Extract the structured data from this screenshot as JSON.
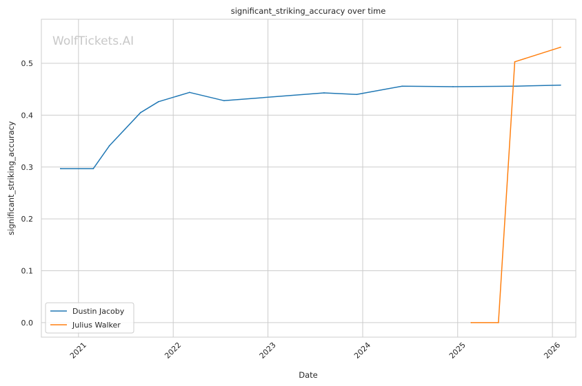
{
  "chart_data": {
    "type": "line",
    "title": "significant_striking_accuracy over time",
    "xlabel": "Date",
    "ylabel": "significant_striking_accuracy",
    "watermark": "WolfTickets.AI",
    "x_range": [
      "2020-08-11",
      "2026-04-01"
    ],
    "ylim": [
      -0.028,
      0.585
    ],
    "x_ticks": [
      "2021",
      "2022",
      "2023",
      "2024",
      "2025",
      "2026"
    ],
    "y_ticks": [
      "0.0",
      "0.1",
      "0.2",
      "0.3",
      "0.4",
      "0.5"
    ],
    "grid": true,
    "legend_position": "lower-left",
    "series": [
      {
        "name": "Dustin Jacoby",
        "color": "#1f77b4",
        "points": [
          [
            "2020-10-24",
            0.297
          ],
          [
            "2021-02-27",
            0.297
          ],
          [
            "2021-04-30",
            0.341
          ],
          [
            "2021-08-28",
            0.405
          ],
          [
            "2021-11-05",
            0.426
          ],
          [
            "2022-03-05",
            0.444
          ],
          [
            "2022-07-16",
            0.428
          ],
          [
            "2023-08-05",
            0.443
          ],
          [
            "2023-12-09",
            0.44
          ],
          [
            "2024-06-01",
            0.456
          ],
          [
            "2024-12-14",
            0.455
          ],
          [
            "2025-08-16",
            0.456
          ],
          [
            "2026-02-01",
            0.458
          ]
        ]
      },
      {
        "name": "Julius Walker",
        "color": "#ff7f0e",
        "points": [
          [
            "2025-02-22",
            0.0
          ],
          [
            "2025-06-07",
            0.0
          ],
          [
            "2025-08-09",
            0.503
          ],
          [
            "2026-02-01",
            0.531
          ]
        ]
      }
    ]
  }
}
